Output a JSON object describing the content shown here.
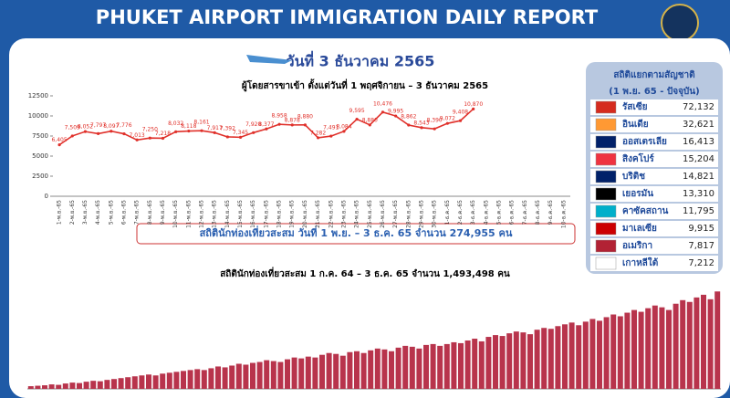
{
  "header": {
    "title": "PHUKET AIRPORT IMMIGRATION DAILY REPORT",
    "date": "วันที่ 3 ธันวาคม 2565"
  },
  "summary": "สถิตินักท่องเที่ยวสะสม วันที่ 1 พ.ย. – 3 ธ.ค. 65 จำนวน 274,955 คน",
  "nationalities": {
    "title": "สถิติแยกตามสัญชาติ",
    "subtitle": "(1 พ.ย. 65 - ปัจจุบัน)",
    "rows": [
      [
        "รัสเซีย",
        "72,132"
      ],
      [
        "อินเดีย",
        "32,621"
      ],
      [
        "ออสเตรเลีย",
        "16,413"
      ],
      [
        "สิงคโปร์",
        "15,204"
      ],
      [
        "บริติช",
        "14,821"
      ],
      [
        "เยอรมัน",
        "13,310"
      ],
      [
        "คาซัคสถาน",
        "11,795"
      ],
      [
        "มาเลเซีย",
        "9,915"
      ],
      [
        "อเมริกา",
        "7,817"
      ],
      [
        "เกาหลีใต้",
        "7,212"
      ]
    ]
  },
  "chart_data": [
    {
      "type": "line",
      "title": "ผู้โดยสารขาเข้า ตั้งแต่วันที่ 1 พฤศจิกายน – 3 ธันวาคม 2565",
      "color": "#e0302a",
      "categories": [
        "1-พ.ย.-65",
        "2-พ.ย.-65",
        "3-พ.ย.-65",
        "4-พ.ย.-65",
        "5-พ.ย.-65",
        "6-พ.ย.-65",
        "7-พ.ย.-65",
        "8-พ.ย.-65",
        "9-พ.ย.-65",
        "10-พ.ย.-65",
        "11-พ.ย.-65",
        "12-พ.ย.-65",
        "13-พ.ย.-65",
        "14-พ.ย.-65",
        "15-พ.ย.-65",
        "16-พ.ย.-65",
        "17-พ.ย.-65",
        "18-พ.ย.-65",
        "19-พ.ย.-65",
        "20-พ.ย.-65",
        "21-พ.ย.-65",
        "22-พ.ย.-65",
        "23-พ.ย.-65",
        "24-พ.ย.-65",
        "25-พ.ย.-65",
        "26-พ.ย.-65",
        "27-พ.ย.-65",
        "28-พ.ย.-65",
        "29-พ.ย.-65",
        "30-พ.ย.-65",
        "1-ธ.ค.-65",
        "2-ธ.ค.-65",
        "3-ธ.ค.-65",
        "4-ธ.ค.-65",
        "5-ธ.ค.-65",
        "6-ธ.ค.-65",
        "7-ธ.ค.-65",
        "8-ธ.ค.-65",
        "9-ธ.ค.-65",
        "10-ธ.ค.-65"
      ],
      "values": [
        6405,
        7509,
        8052,
        7797,
        8097,
        7776,
        7013,
        7250,
        7218,
        8032,
        8118,
        8161,
        7917,
        7392,
        7345,
        7920,
        8377,
        8958,
        8878,
        8880,
        7282,
        7491,
        8084,
        9595,
        8880,
        10476,
        9995,
        8862,
        8543,
        8390,
        9072,
        9408,
        10870,
        null,
        null,
        null,
        null,
        null,
        null,
        null
      ],
      "value_labels": [
        "6,405",
        "7,509",
        "8,052",
        "7,797",
        "8,097",
        "7,776",
        "7,013",
        "7,250",
        "7,218",
        "8,032",
        "8,118",
        "8,161",
        "7,917",
        "7,392",
        "7,345",
        "7,920",
        "8,377",
        "8,958",
        "8,878",
        "8,880",
        "7,282",
        "7,491",
        "8,084",
        "9,595",
        "8,880",
        "10,476",
        "9,995",
        "8,862",
        "8,543",
        "8,390",
        "9,072",
        "9,408",
        "10,870",
        null,
        null,
        null,
        null,
        null,
        null,
        null
      ],
      "ylim": [
        0,
        12500
      ],
      "yticks": [
        0,
        2500,
        5000,
        7500,
        10000,
        12500
      ],
      "grid": false
    },
    {
      "type": "bar",
      "title": "สถิตินักท่องเที่ยวสะสม 1 ก.ค. 64 – 3 ธ.ค. 65 จำนวน 1,493,498 คน",
      "color": "#b8344c",
      "values": [
        300,
        350,
        400,
        500,
        450,
        600,
        700,
        650,
        800,
        900,
        850,
        1000,
        1100,
        1200,
        1300,
        1400,
        1500,
        1600,
        1500,
        1700,
        1800,
        1900,
        2000,
        2100,
        2200,
        2100,
        2300,
        2500,
        2400,
        2600,
        2800,
        2700,
        2900,
        3000,
        3200,
        3100,
        3000,
        3300,
        3500,
        3400,
        3600,
        3500,
        3800,
        4000,
        3900,
        3700,
        4100,
        4200,
        4000,
        4300,
        4500,
        4400,
        4200,
        4600,
        4800,
        4700,
        4500,
        4900,
        5000,
        4800,
        5000,
        5200,
        5100,
        5400,
        5600,
        5300,
        5800,
        6000,
        5900,
        6200,
        6400,
        6300,
        6100,
        6600,
        6800,
        6700,
        7000,
        7200,
        7400,
        7100,
        7500,
        7800,
        7600,
        8000,
        8300,
        8100,
        8500,
        8800,
        8600,
        9000,
        9300,
        9100,
        8800,
        9500,
        9900,
        9700,
        10200,
        10500,
        10000,
        10870
      ],
      "ylim": [
        0,
        11000
      ]
    }
  ]
}
